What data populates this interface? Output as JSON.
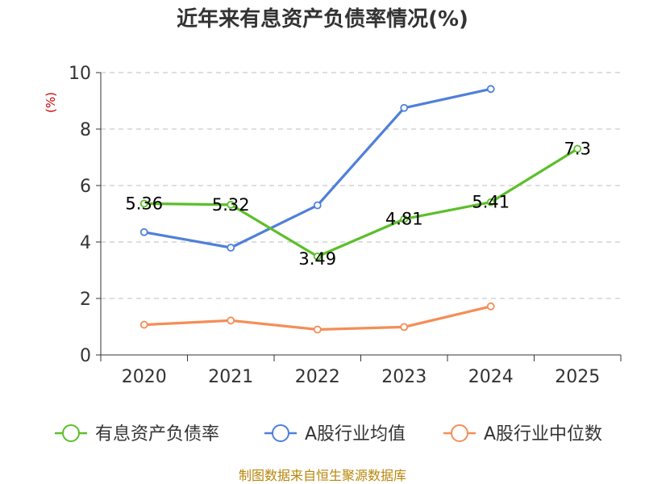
{
  "chart_data": {
    "type": "line",
    "title": "近年来有息资产负债率情况(%)",
    "ylabel": "(%)",
    "categories": [
      "2020",
      "2021",
      "2022",
      "2023",
      "2024",
      "2025"
    ],
    "ylim": [
      0,
      10
    ],
    "yticks": [
      "0",
      "2",
      "4",
      "6",
      "8",
      "10"
    ],
    "grid": true,
    "legend_position": "bottom",
    "series": [
      {
        "name": "有息资产负债率",
        "color": "#5cbf2a",
        "values": [
          5.36,
          5.32,
          3.49,
          4.81,
          5.41,
          7.3
        ],
        "labels": [
          "5.36",
          "5.32",
          "3.49",
          "4.81",
          "5.41",
          "7.3"
        ]
      },
      {
        "name": "A股行业均值",
        "color": "#4f80d9",
        "values": [
          4.35,
          3.8,
          5.3,
          8.75,
          9.42,
          null
        ]
      },
      {
        "name": "A股行业中位数",
        "color": "#f58d57",
        "values": [
          1.07,
          1.22,
          0.9,
          0.99,
          1.72,
          null
        ]
      }
    ]
  },
  "source": "制图数据来自恒生聚源数据库"
}
